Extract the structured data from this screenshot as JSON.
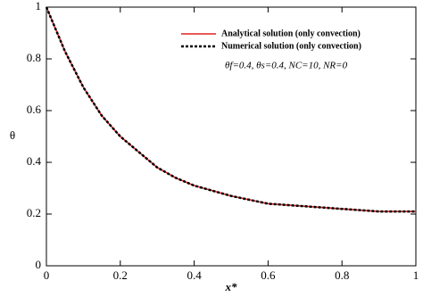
{
  "chart_data": {
    "type": "line",
    "x_label": "x*",
    "y_label": "θ",
    "annotation": "θf=0.4, θs=0.4, NC=10, NR=0",
    "x": [
      0,
      0.05,
      0.1,
      0.15,
      0.2,
      0.25,
      0.3,
      0.35,
      0.4,
      0.5,
      0.6,
      0.7,
      0.8,
      0.9,
      1.0
    ],
    "series": [
      {
        "name": "Analytical solution (only convection)",
        "color": "#e02020",
        "dash": false,
        "values": [
          1,
          0.83,
          0.69,
          0.58,
          0.5,
          0.44,
          0.38,
          0.34,
          0.31,
          0.27,
          0.24,
          0.23,
          0.22,
          0.21,
          0.21
        ]
      },
      {
        "name": "Numerical solution (only convection)",
        "color": "#000000",
        "dash": true,
        "values": [
          1,
          0.83,
          0.69,
          0.58,
          0.5,
          0.44,
          0.38,
          0.34,
          0.31,
          0.27,
          0.24,
          0.23,
          0.22,
          0.21,
          0.21
        ]
      }
    ],
    "xlim": [
      0,
      1
    ],
    "ylim": [
      0,
      1
    ],
    "xticks": [
      0,
      0.2,
      0.4,
      0.6,
      0.8,
      1
    ],
    "yticks": [
      0,
      0.2,
      0.4,
      0.6,
      0.8,
      1
    ],
    "grid": false
  }
}
